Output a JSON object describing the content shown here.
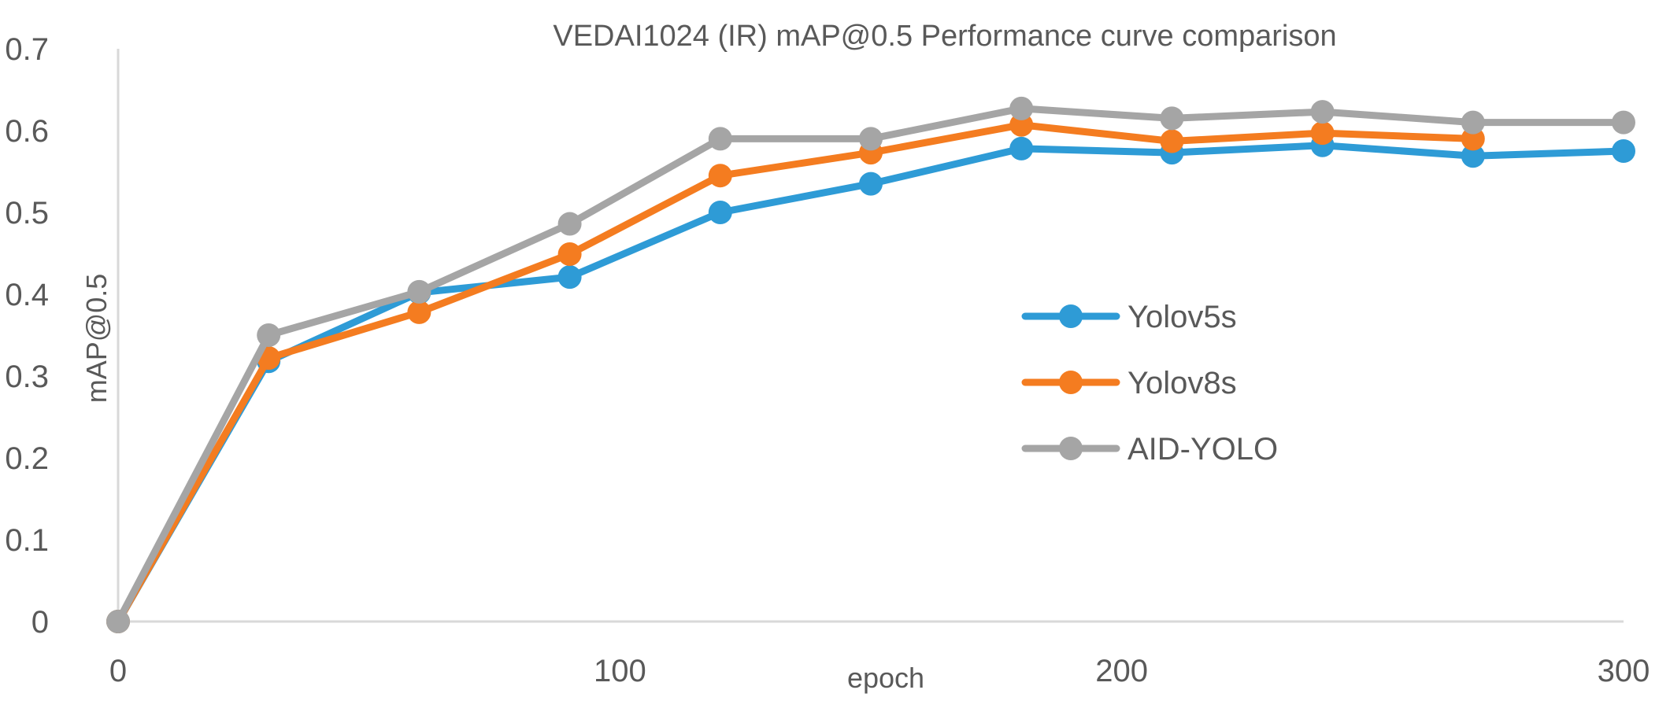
{
  "chart_data": {
    "type": "line",
    "title": "VEDAI1024 (IR) mAP@0.5 Performance curve comparison",
    "xlabel": "epoch",
    "ylabel": "mAP@0.5",
    "xlim": [
      0,
      300
    ],
    "ylim": [
      0,
      0.7
    ],
    "xticks": [
      0,
      100,
      200,
      300
    ],
    "xtick_labels": [
      "0",
      "100",
      "200",
      "300"
    ],
    "yticks": [
      0,
      0.1,
      0.2,
      0.3,
      0.4,
      0.5,
      0.6,
      0.7
    ],
    "ytick_labels": [
      "0",
      "0.1",
      "0.2",
      "0.3",
      "0.4",
      "0.5",
      "0.6",
      "0.7"
    ],
    "grid": false,
    "legend_position": "right",
    "series": [
      {
        "name": "Yolov5s",
        "color": "#2E9BD6",
        "x": [
          0,
          30,
          60,
          90,
          120,
          150,
          180,
          210,
          240,
          270,
          300
        ],
        "y": [
          0,
          0.318,
          0.402,
          0.421,
          0.5,
          0.535,
          0.578,
          0.573,
          0.582,
          0.569,
          0.575
        ]
      },
      {
        "name": "Yolov8s",
        "color": "#F47C20",
        "x": [
          0,
          30,
          60,
          90,
          120,
          150,
          180,
          210,
          240,
          270
        ],
        "y": [
          0,
          0.322,
          0.378,
          0.449,
          0.545,
          0.573,
          0.607,
          0.587,
          0.597,
          0.59
        ]
      },
      {
        "name": "AID-YOLO",
        "color": "#A5A5A5",
        "x": [
          0,
          30,
          60,
          90,
          120,
          150,
          180,
          210,
          240,
          270,
          300
        ],
        "y": [
          0,
          0.35,
          0.403,
          0.486,
          0.59,
          0.59,
          0.627,
          0.615,
          0.623,
          0.61,
          0.61
        ]
      }
    ]
  }
}
